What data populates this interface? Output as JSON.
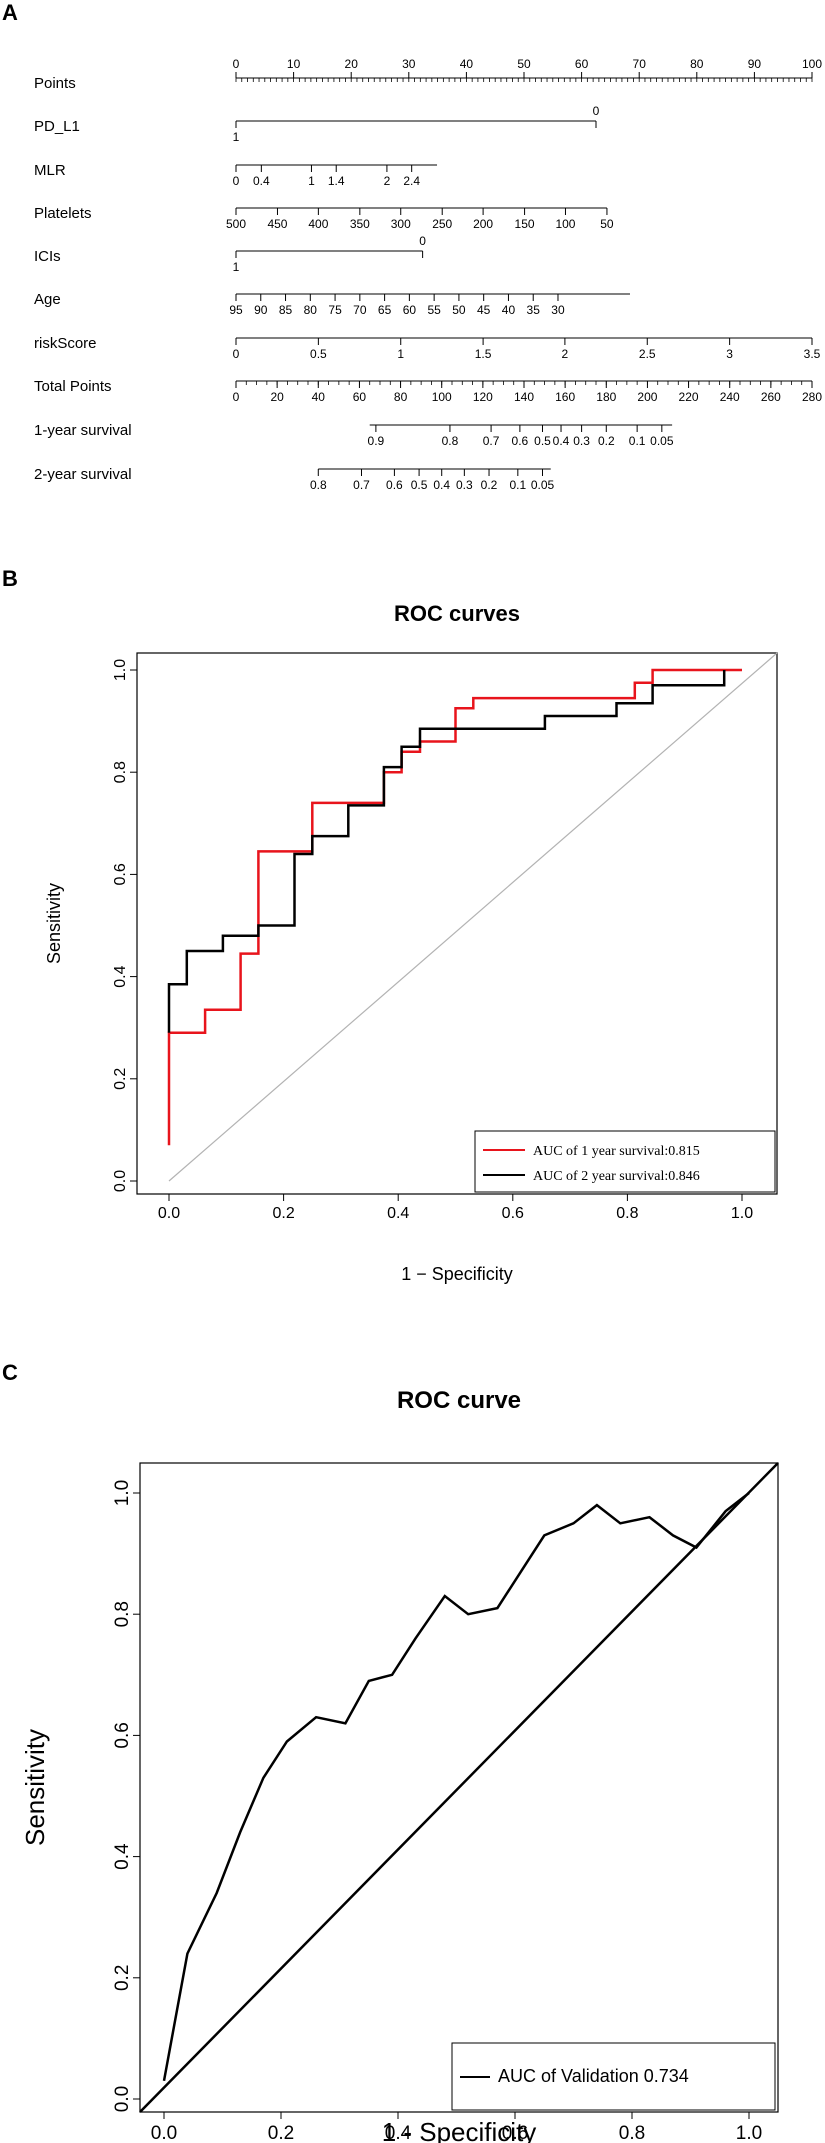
{
  "panels": {
    "a": "A",
    "b": "B",
    "c": "C"
  },
  "chart_data": [
    {
      "type": "nomogram",
      "rows": [
        {
          "label": "Points",
          "ticks": [
            0,
            10,
            20,
            30,
            40,
            50,
            60,
            70,
            80,
            90,
            100
          ],
          "range": [
            0,
            100
          ],
          "labels_above": true
        },
        {
          "label": "PD_L1",
          "ticks": [
            {
              "v": 0,
              "t": "1"
            },
            {
              "v": 62.5,
              "t": "0"
            }
          ],
          "range": [
            0,
            62.5
          ]
        },
        {
          "label": "MLR",
          "ticks": [
            {
              "v": 0,
              "t": "0"
            },
            {
              "v": 4.4,
              "t": "0.4"
            },
            {
              "v": 13.1,
              "t": "1"
            },
            {
              "v": 17.4,
              "t": "1.4"
            },
            {
              "v": 26.2,
              "t": "2"
            },
            {
              "v": 30.5,
              "t": "2.4"
            }
          ],
          "range": [
            0,
            34.9
          ]
        },
        {
          "label": "Platelets",
          "ticks": [
            {
              "v": 0,
              "t": "500"
            },
            {
              "v": 7.2,
              "t": "450"
            },
            {
              "v": 14.3,
              "t": "400"
            },
            {
              "v": 21.5,
              "t": "350"
            },
            {
              "v": 28.6,
              "t": "300"
            },
            {
              "v": 35.8,
              "t": "250"
            },
            {
              "v": 42.9,
              "t": "200"
            },
            {
              "v": 50.1,
              "t": "150"
            },
            {
              "v": 57.2,
              "t": "100"
            },
            {
              "v": 64.4,
              "t": "50"
            }
          ],
          "range": [
            0,
            64.4
          ]
        },
        {
          "label": "ICIs",
          "ticks": [
            {
              "v": 0,
              "t": "1"
            },
            {
              "v": 32.4,
              "t": "0"
            }
          ],
          "range": [
            0,
            32.4
          ]
        },
        {
          "label": "Age",
          "ticks": [
            {
              "v": 0,
              "t": "95"
            },
            {
              "v": 4.3,
              "t": "90"
            },
            {
              "v": 8.6,
              "t": "85"
            },
            {
              "v": 12.9,
              "t": "80"
            },
            {
              "v": 17.2,
              "t": "75"
            },
            {
              "v": 21.5,
              "t": "70"
            },
            {
              "v": 25.8,
              "t": "65"
            },
            {
              "v": 30.1,
              "t": "60"
            },
            {
              "v": 34.4,
              "t": "55"
            },
            {
              "v": 38.7,
              "t": "50"
            },
            {
              "v": 43,
              "t": "45"
            },
            {
              "v": 47.3,
              "t": "40"
            },
            {
              "v": 51.6,
              "t": "35"
            },
            {
              "v": 55.9,
              "t": "30"
            }
          ],
          "range": [
            0,
            68.4
          ]
        },
        {
          "label": "riskScore",
          "ticks": [
            {
              "v": 0,
              "t": "0"
            },
            {
              "v": 14.3,
              "t": "0.5"
            },
            {
              "v": 28.6,
              "t": "1"
            },
            {
              "v": 42.9,
              "t": "1.5"
            },
            {
              "v": 57.1,
              "t": "2"
            },
            {
              "v": 71.4,
              "t": "2.5"
            },
            {
              "v": 85.7,
              "t": "3"
            },
            {
              "v": 100,
              "t": "3.5"
            }
          ],
          "range": [
            0,
            100
          ]
        },
        {
          "label": "Total Points",
          "ticks": [
            0,
            20,
            40,
            60,
            80,
            100,
            120,
            140,
            160,
            180,
            200,
            220,
            240,
            260,
            280
          ],
          "range": [
            0,
            280
          ],
          "total": true
        },
        {
          "label": "1-year survival",
          "ticks": [
            {
              "v": 68,
              "t": "0.9"
            },
            {
              "v": 104,
              "t": "0.8"
            },
            {
              "v": 124,
              "t": "0.7"
            },
            {
              "v": 138,
              "t": "0.6"
            },
            {
              "v": 149,
              "t": "0.5"
            },
            {
              "v": 158,
              "t": "0.4"
            },
            {
              "v": 168,
              "t": "0.3"
            },
            {
              "v": 180,
              "t": "0.2"
            },
            {
              "v": 195,
              "t": "0.1"
            },
            {
              "v": 207,
              "t": "0.05"
            }
          ],
          "range": [
            65,
            212
          ],
          "total": true
        },
        {
          "label": "2-year survival",
          "ticks": [
            {
              "v": 40,
              "t": "0.8"
            },
            {
              "v": 61,
              "t": "0.7"
            },
            {
              "v": 77,
              "t": "0.6"
            },
            {
              "v": 89,
              "t": "0.5"
            },
            {
              "v": 100,
              "t": "0.4"
            },
            {
              "v": 111,
              "t": "0.3"
            },
            {
              "v": 123,
              "t": "0.2"
            },
            {
              "v": 137,
              "t": "0.1"
            },
            {
              "v": 149,
              "t": "0.05"
            }
          ],
          "range": [
            40,
            153
          ],
          "total": true
        }
      ]
    },
    {
      "type": "line",
      "title": "ROC curves",
      "xlabel": "1 − Specificity",
      "ylabel": "Sensitivity",
      "xlim": [
        0,
        1
      ],
      "ylim": [
        0,
        1
      ],
      "xticks": [
        "0.0",
        "0.2",
        "0.4",
        "0.6",
        "0.8",
        "1.0"
      ],
      "yticks": [
        "0.0",
        "0.2",
        "0.4",
        "0.6",
        "0.8",
        "1.0"
      ],
      "legend": "bottom-right",
      "series": [
        {
          "name": "AUC of 1 year survival:0.815",
          "color": "#e8141c",
          "points": [
            [
              0,
              0.07
            ],
            [
              0,
              0.29
            ],
            [
              0.063,
              0.29
            ],
            [
              0.063,
              0.335
            ],
            [
              0.125,
              0.335
            ],
            [
              0.125,
              0.445
            ],
            [
              0.156,
              0.445
            ],
            [
              0.156,
              0.645
            ],
            [
              0.25,
              0.645
            ],
            [
              0.25,
              0.74
            ],
            [
              0.375,
              0.74
            ],
            [
              0.375,
              0.8
            ],
            [
              0.406,
              0.8
            ],
            [
              0.406,
              0.84
            ],
            [
              0.438,
              0.84
            ],
            [
              0.438,
              0.86
            ],
            [
              0.5,
              0.86
            ],
            [
              0.5,
              0.925
            ],
            [
              0.531,
              0.925
            ],
            [
              0.531,
              0.945
            ],
            [
              0.813,
              0.945
            ],
            [
              0.813,
              0.975
            ],
            [
              0.844,
              0.975
            ],
            [
              0.844,
              1
            ],
            [
              1,
              1
            ]
          ]
        },
        {
          "name": "AUC of 2 year survival:0.846",
          "color": "#000000",
          "points": [
            [
              0,
              0.29
            ],
            [
              0,
              0.385
            ],
            [
              0.031,
              0.385
            ],
            [
              0.031,
              0.45
            ],
            [
              0.094,
              0.45
            ],
            [
              0.094,
              0.48
            ],
            [
              0.156,
              0.48
            ],
            [
              0.156,
              0.5
            ],
            [
              0.219,
              0.5
            ],
            [
              0.219,
              0.64
            ],
            [
              0.25,
              0.64
            ],
            [
              0.25,
              0.675
            ],
            [
              0.313,
              0.675
            ],
            [
              0.313,
              0.735
            ],
            [
              0.375,
              0.735
            ],
            [
              0.375,
              0.81
            ],
            [
              0.406,
              0.81
            ],
            [
              0.406,
              0.85
            ],
            [
              0.438,
              0.85
            ],
            [
              0.438,
              0.885
            ],
            [
              0.656,
              0.885
            ],
            [
              0.656,
              0.91
            ],
            [
              0.781,
              0.91
            ],
            [
              0.781,
              0.935
            ],
            [
              0.844,
              0.935
            ],
            [
              0.844,
              0.97
            ],
            [
              0.969,
              0.97
            ],
            [
              0.969,
              1
            ]
          ]
        }
      ]
    },
    {
      "type": "line",
      "title": "ROC curve",
      "xlabel": "1 - Specificity",
      "ylabel": "Sensitivity",
      "xlim": [
        0,
        1
      ],
      "ylim": [
        0,
        1
      ],
      "xticks": [
        "0.0",
        "0.2",
        "0.4",
        "0.6",
        "0.8",
        "1.0"
      ],
      "yticks": [
        "0.0",
        "0.2",
        "0.4",
        "0.6",
        "0.8",
        "1.0"
      ],
      "legend": "bottom-right",
      "series": [
        {
          "name": "AUC of Validation 0.734",
          "color": "#000000",
          "points": [
            [
              0,
              0.03
            ],
            [
              0.04,
              0.24
            ],
            [
              0.09,
              0.34
            ],
            [
              0.13,
              0.44
            ],
            [
              0.17,
              0.53
            ],
            [
              0.21,
              0.59
            ],
            [
              0.26,
              0.63
            ],
            [
              0.31,
              0.62
            ],
            [
              0.35,
              0.69
            ],
            [
              0.39,
              0.7
            ],
            [
              0.43,
              0.76
            ],
            [
              0.48,
              0.83
            ],
            [
              0.52,
              0.8
            ],
            [
              0.57,
              0.81
            ],
            [
              0.61,
              0.87
            ],
            [
              0.65,
              0.93
            ],
            [
              0.7,
              0.95
            ],
            [
              0.74,
              0.98
            ],
            [
              0.78,
              0.95
            ],
            [
              0.83,
              0.96
            ],
            [
              0.87,
              0.93
            ],
            [
              0.91,
              0.91
            ],
            [
              0.96,
              0.97
            ],
            [
              1.0,
              1.0
            ]
          ]
        }
      ]
    }
  ]
}
